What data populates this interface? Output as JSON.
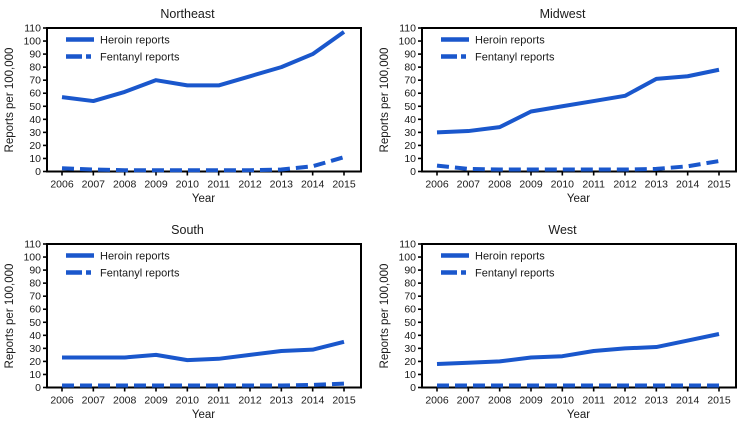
{
  "colors": {
    "line": "#1a57cc",
    "axis": "#000000",
    "text": "#1a1a1a",
    "background": "#ffffff"
  },
  "chart_data": [
    {
      "type": "line",
      "title": "Northeast",
      "xlabel": "Year",
      "ylabel": "Reports per 100,000",
      "x": [
        "2006",
        "2007",
        "2008",
        "2009",
        "2010",
        "2011",
        "2012",
        "2013",
        "2014",
        "2015"
      ],
      "ylim": [
        0,
        110
      ],
      "ytick_step": 10,
      "grid": false,
      "legend_position": "top-left",
      "series": [
        {
          "name": "Heroin reports",
          "line_style": "solid",
          "values": [
            57,
            54,
            61,
            70,
            66,
            66,
            73,
            80,
            90,
            107
          ]
        },
        {
          "name": "Fentanyl reports",
          "line_style": "dashed",
          "values": [
            2.5,
            1.5,
            1,
            1,
            1,
            1,
            1,
            1.5,
            4,
            11
          ]
        }
      ]
    },
    {
      "type": "line",
      "title": "Midwest",
      "xlabel": "Year",
      "ylabel": "Reports per 100,000",
      "x": [
        "2006",
        "2007",
        "2008",
        "2009",
        "2010",
        "2011",
        "2012",
        "2013",
        "2014",
        "2015"
      ],
      "ylim": [
        0,
        110
      ],
      "ytick_step": 10,
      "grid": false,
      "legend_position": "top-left",
      "series": [
        {
          "name": "Heroin reports",
          "line_style": "solid",
          "values": [
            30,
            31,
            34,
            46,
            50,
            54,
            58,
            71,
            73,
            78
          ]
        },
        {
          "name": "Fentanyl reports",
          "line_style": "dashed",
          "values": [
            4.5,
            2,
            1.5,
            1.5,
            1.5,
            1.5,
            1.5,
            2,
            4,
            8
          ]
        }
      ]
    },
    {
      "type": "line",
      "title": "South",
      "xlabel": "Year",
      "ylabel": "Reports per 100,000",
      "x": [
        "2006",
        "2007",
        "2008",
        "2009",
        "2010",
        "2011",
        "2012",
        "2013",
        "2014",
        "2015"
      ],
      "ylim": [
        0,
        110
      ],
      "ytick_step": 10,
      "grid": false,
      "legend_position": "top-left",
      "series": [
        {
          "name": "Heroin reports",
          "line_style": "solid",
          "values": [
            23,
            23,
            23,
            25,
            21,
            22,
            25,
            28,
            29,
            35
          ]
        },
        {
          "name": "Fentanyl reports",
          "line_style": "dashed",
          "values": [
            1.5,
            1.5,
            1.5,
            1.5,
            1.5,
            1.5,
            1.5,
            1.5,
            2,
            3
          ]
        }
      ]
    },
    {
      "type": "line",
      "title": "West",
      "xlabel": "Year",
      "ylabel": "Reports per 100,000",
      "x": [
        "2006",
        "2007",
        "2008",
        "2009",
        "2010",
        "2011",
        "2012",
        "2013",
        "2014",
        "2015"
      ],
      "ylim": [
        0,
        110
      ],
      "ytick_step": 10,
      "grid": false,
      "legend_position": "top-left",
      "series": [
        {
          "name": "Heroin reports",
          "line_style": "solid",
          "values": [
            18,
            19,
            20,
            23,
            24,
            28,
            30,
            31,
            36,
            41
          ]
        },
        {
          "name": "Fentanyl reports",
          "line_style": "dashed",
          "values": [
            1.5,
            1.5,
            1.5,
            1.5,
            1.5,
            1.5,
            1.5,
            1.5,
            1.5,
            1.5
          ]
        }
      ]
    }
  ]
}
